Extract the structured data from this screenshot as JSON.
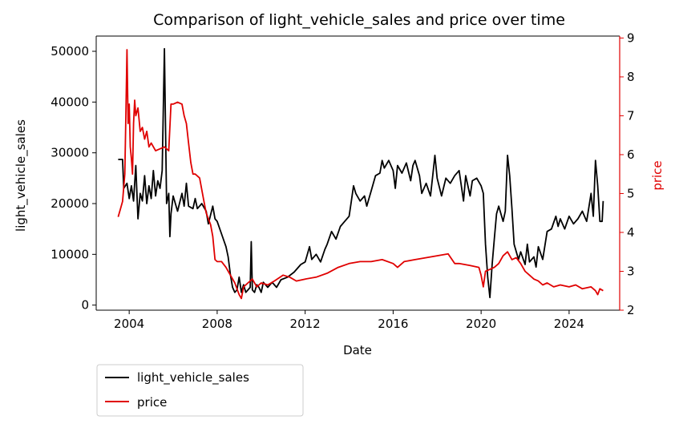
{
  "chart_data": {
    "type": "line",
    "title": "Comparison of light_vehicle_sales and price over time",
    "xlabel": "Date",
    "ylabel_left": "light_vehicle_sales",
    "ylabel_right": "price",
    "xlim": [
      2002.5,
      2026.3
    ],
    "ylim_left": [
      -1000,
      53000
    ],
    "ylim_right": [
      2.0,
      9.05
    ],
    "x_ticks": [
      {
        "value": 2004,
        "label": "2004"
      },
      {
        "value": 2008,
        "label": "2008"
      },
      {
        "value": 2012,
        "label": "2012"
      },
      {
        "value": 2016,
        "label": "2016"
      },
      {
        "value": 2020,
        "label": "2020"
      },
      {
        "value": 2024,
        "label": "2024"
      }
    ],
    "y_ticks_left": [
      {
        "value": 0,
        "label": "0"
      },
      {
        "value": 10000,
        "label": "10000"
      },
      {
        "value": 20000,
        "label": "20000"
      },
      {
        "value": 30000,
        "label": "30000"
      },
      {
        "value": 40000,
        "label": "40000"
      },
      {
        "value": 50000,
        "label": "50000"
      }
    ],
    "y_ticks_right": [
      {
        "value": 2,
        "label": "2"
      },
      {
        "value": 3,
        "label": "3"
      },
      {
        "value": 4,
        "label": "4"
      },
      {
        "value": 5,
        "label": "5"
      },
      {
        "value": 6,
        "label": "6"
      },
      {
        "value": 7,
        "label": "7"
      },
      {
        "value": 8,
        "label": "8"
      },
      {
        "value": 9,
        "label": "9"
      }
    ],
    "legend_position": "below-left",
    "grid": false,
    "series": [
      {
        "name": "light_vehicle_sales",
        "color": "#000000",
        "axis": "left",
        "points": [
          [
            2003.5,
            28700
          ],
          [
            2003.7,
            28700
          ],
          [
            2003.75,
            23000
          ],
          [
            2003.9,
            24000
          ],
          [
            2004.0,
            21000
          ],
          [
            2004.1,
            23500
          ],
          [
            2004.2,
            20500
          ],
          [
            2004.3,
            27500
          ],
          [
            2004.35,
            22000
          ],
          [
            2004.4,
            17000
          ],
          [
            2004.5,
            22000
          ],
          [
            2004.6,
            20500
          ],
          [
            2004.7,
            25500
          ],
          [
            2004.8,
            20000
          ],
          [
            2004.9,
            23500
          ],
          [
            2005.0,
            21000
          ],
          [
            2005.1,
            26500
          ],
          [
            2005.2,
            21500
          ],
          [
            2005.3,
            24500
          ],
          [
            2005.4,
            23000
          ],
          [
            2005.5,
            26500
          ],
          [
            2005.6,
            50500
          ],
          [
            2005.7,
            20000
          ],
          [
            2005.8,
            22000
          ],
          [
            2005.85,
            13500
          ],
          [
            2005.9,
            18000
          ],
          [
            2006.0,
            21500
          ],
          [
            2006.2,
            18500
          ],
          [
            2006.4,
            22000
          ],
          [
            2006.5,
            19500
          ],
          [
            2006.6,
            24000
          ],
          [
            2006.7,
            19500
          ],
          [
            2006.9,
            19000
          ],
          [
            2007.0,
            21000
          ],
          [
            2007.1,
            19000
          ],
          [
            2007.3,
            20000
          ],
          [
            2007.5,
            18500
          ],
          [
            2007.6,
            16000
          ],
          [
            2007.8,
            19500
          ],
          [
            2007.9,
            17000
          ],
          [
            2008.0,
            16500
          ],
          [
            2008.2,
            14000
          ],
          [
            2008.4,
            11500
          ],
          [
            2008.5,
            9500
          ],
          [
            2008.6,
            6000
          ],
          [
            2008.7,
            3500
          ],
          [
            2008.8,
            2500
          ],
          [
            2008.9,
            3000
          ],
          [
            2009.0,
            5500
          ],
          [
            2009.1,
            2500
          ],
          [
            2009.2,
            4000
          ],
          [
            2009.3,
            2500
          ],
          [
            2009.5,
            3500
          ],
          [
            2009.55,
            12500
          ],
          [
            2009.6,
            3000
          ],
          [
            2009.7,
            2500
          ],
          [
            2009.8,
            4000
          ],
          [
            2009.9,
            3500
          ],
          [
            2010.0,
            2500
          ],
          [
            2010.1,
            4500
          ],
          [
            2010.3,
            3500
          ],
          [
            2010.5,
            4500
          ],
          [
            2010.7,
            3500
          ],
          [
            2010.9,
            5000
          ],
          [
            2011.2,
            5500
          ],
          [
            2011.5,
            6500
          ],
          [
            2011.8,
            8000
          ],
          [
            2012.0,
            8500
          ],
          [
            2012.2,
            11500
          ],
          [
            2012.3,
            9000
          ],
          [
            2012.5,
            10000
          ],
          [
            2012.7,
            8500
          ],
          [
            2012.9,
            11000
          ],
          [
            2013.0,
            12000
          ],
          [
            2013.2,
            14500
          ],
          [
            2013.4,
            13000
          ],
          [
            2013.6,
            15500
          ],
          [
            2013.8,
            16500
          ],
          [
            2014.0,
            17500
          ],
          [
            2014.1,
            20500
          ],
          [
            2014.2,
            23500
          ],
          [
            2014.3,
            22000
          ],
          [
            2014.5,
            20500
          ],
          [
            2014.7,
            21500
          ],
          [
            2014.8,
            19500
          ],
          [
            2015.0,
            22500
          ],
          [
            2015.2,
            25500
          ],
          [
            2015.4,
            26000
          ],
          [
            2015.5,
            28500
          ],
          [
            2015.6,
            27000
          ],
          [
            2015.8,
            28500
          ],
          [
            2016.0,
            26500
          ],
          [
            2016.1,
            23000
          ],
          [
            2016.2,
            27500
          ],
          [
            2016.4,
            26000
          ],
          [
            2016.6,
            28000
          ],
          [
            2016.8,
            24500
          ],
          [
            2016.9,
            27500
          ],
          [
            2017.0,
            28500
          ],
          [
            2017.2,
            25500
          ],
          [
            2017.3,
            22000
          ],
          [
            2017.5,
            24000
          ],
          [
            2017.7,
            21500
          ],
          [
            2017.8,
            25500
          ],
          [
            2017.9,
            29500
          ],
          [
            2018.0,
            25000
          ],
          [
            2018.2,
            21500
          ],
          [
            2018.4,
            25000
          ],
          [
            2018.6,
            24000
          ],
          [
            2018.8,
            25500
          ],
          [
            2019.0,
            26500
          ],
          [
            2019.2,
            20500
          ],
          [
            2019.3,
            25500
          ],
          [
            2019.5,
            21500
          ],
          [
            2019.6,
            24500
          ],
          [
            2019.8,
            25000
          ],
          [
            2020.0,
            23500
          ],
          [
            2020.1,
            22000
          ],
          [
            2020.2,
            12000
          ],
          [
            2020.3,
            5500
          ],
          [
            2020.4,
            1500
          ],
          [
            2020.5,
            8000
          ],
          [
            2020.6,
            13000
          ],
          [
            2020.7,
            18000
          ],
          [
            2020.8,
            19500
          ],
          [
            2021.0,
            16500
          ],
          [
            2021.1,
            18500
          ],
          [
            2021.2,
            29500
          ],
          [
            2021.3,
            25500
          ],
          [
            2021.4,
            19000
          ],
          [
            2021.5,
            12000
          ],
          [
            2021.7,
            9000
          ],
          [
            2021.8,
            10500
          ],
          [
            2022.0,
            8000
          ],
          [
            2022.1,
            12000
          ],
          [
            2022.2,
            8500
          ],
          [
            2022.4,
            9500
          ],
          [
            2022.5,
            7500
          ],
          [
            2022.6,
            11500
          ],
          [
            2022.8,
            9000
          ],
          [
            2023.0,
            14500
          ],
          [
            2023.2,
            15000
          ],
          [
            2023.4,
            17500
          ],
          [
            2023.5,
            15500
          ],
          [
            2023.6,
            17000
          ],
          [
            2023.8,
            15000
          ],
          [
            2024.0,
            17500
          ],
          [
            2024.2,
            16000
          ],
          [
            2024.4,
            17000
          ],
          [
            2024.6,
            18500
          ],
          [
            2024.8,
            16500
          ],
          [
            2025.0,
            22000
          ],
          [
            2025.1,
            17500
          ],
          [
            2025.2,
            28500
          ],
          [
            2025.3,
            23500
          ],
          [
            2025.4,
            16500
          ],
          [
            2025.5,
            16500
          ],
          [
            2025.55,
            20500
          ]
        ]
      },
      {
        "name": "price",
        "color": "#e00000",
        "axis": "right",
        "points": [
          [
            2003.5,
            4.4
          ],
          [
            2003.6,
            4.6
          ],
          [
            2003.7,
            4.8
          ],
          [
            2003.8,
            5.5
          ],
          [
            2003.85,
            7.0
          ],
          [
            2003.9,
            8.7
          ],
          [
            2003.95,
            6.8
          ],
          [
            2004.0,
            7.3
          ],
          [
            2004.05,
            6.2
          ],
          [
            2004.1,
            5.9
          ],
          [
            2004.15,
            5.5
          ],
          [
            2004.2,
            6.8
          ],
          [
            2004.25,
            7.4
          ],
          [
            2004.3,
            7.0
          ],
          [
            2004.4,
            7.2
          ],
          [
            2004.5,
            6.6
          ],
          [
            2004.6,
            6.7
          ],
          [
            2004.7,
            6.4
          ],
          [
            2004.8,
            6.6
          ],
          [
            2004.9,
            6.2
          ],
          [
            2005.0,
            6.3
          ],
          [
            2005.2,
            6.1
          ],
          [
            2005.4,
            6.15
          ],
          [
            2005.6,
            6.2
          ],
          [
            2005.8,
            6.1
          ],
          [
            2005.9,
            7.3
          ],
          [
            2006.0,
            7.3
          ],
          [
            2006.2,
            7.35
          ],
          [
            2006.4,
            7.3
          ],
          [
            2006.5,
            7.0
          ],
          [
            2006.6,
            6.8
          ],
          [
            2006.7,
            6.3
          ],
          [
            2006.8,
            5.8
          ],
          [
            2006.9,
            5.5
          ],
          [
            2007.0,
            5.5
          ],
          [
            2007.2,
            5.4
          ],
          [
            2007.4,
            4.8
          ],
          [
            2007.5,
            4.5
          ],
          [
            2007.7,
            4.2
          ],
          [
            2007.8,
            3.9
          ],
          [
            2007.9,
            3.3
          ],
          [
            2008.0,
            3.25
          ],
          [
            2008.2,
            3.25
          ],
          [
            2008.4,
            3.1
          ],
          [
            2008.6,
            2.9
          ],
          [
            2008.8,
            2.7
          ],
          [
            2009.0,
            2.4
          ],
          [
            2009.1,
            2.3
          ],
          [
            2009.2,
            2.6
          ],
          [
            2009.4,
            2.7
          ],
          [
            2009.6,
            2.8
          ],
          [
            2009.8,
            2.6
          ],
          [
            2010.0,
            2.7
          ],
          [
            2010.3,
            2.65
          ],
          [
            2010.6,
            2.75
          ],
          [
            2011.0,
            2.9
          ],
          [
            2011.3,
            2.85
          ],
          [
            2011.6,
            2.75
          ],
          [
            2012.0,
            2.8
          ],
          [
            2012.5,
            2.85
          ],
          [
            2013.0,
            2.95
          ],
          [
            2013.5,
            3.1
          ],
          [
            2014.0,
            3.2
          ],
          [
            2014.5,
            3.25
          ],
          [
            2015.0,
            3.25
          ],
          [
            2015.5,
            3.3
          ],
          [
            2016.0,
            3.2
          ],
          [
            2016.2,
            3.1
          ],
          [
            2016.5,
            3.25
          ],
          [
            2017.0,
            3.3
          ],
          [
            2017.5,
            3.35
          ],
          [
            2018.0,
            3.4
          ],
          [
            2018.5,
            3.45
          ],
          [
            2018.8,
            3.2
          ],
          [
            2019.0,
            3.2
          ],
          [
            2019.5,
            3.15
          ],
          [
            2019.9,
            3.1
          ],
          [
            2020.0,
            2.9
          ],
          [
            2020.1,
            2.6
          ],
          [
            2020.2,
            3.0
          ],
          [
            2020.4,
            3.05
          ],
          [
            2020.6,
            3.1
          ],
          [
            2020.8,
            3.2
          ],
          [
            2021.0,
            3.4
          ],
          [
            2021.2,
            3.5
          ],
          [
            2021.4,
            3.3
          ],
          [
            2021.6,
            3.35
          ],
          [
            2021.8,
            3.2
          ],
          [
            2022.0,
            3.0
          ],
          [
            2022.2,
            2.9
          ],
          [
            2022.4,
            2.8
          ],
          [
            2022.6,
            2.75
          ],
          [
            2022.8,
            2.65
          ],
          [
            2023.0,
            2.7
          ],
          [
            2023.3,
            2.6
          ],
          [
            2023.6,
            2.65
          ],
          [
            2024.0,
            2.6
          ],
          [
            2024.3,
            2.65
          ],
          [
            2024.6,
            2.55
          ],
          [
            2025.0,
            2.6
          ],
          [
            2025.2,
            2.5
          ],
          [
            2025.3,
            2.4
          ],
          [
            2025.4,
            2.55
          ],
          [
            2025.55,
            2.5
          ]
        ]
      }
    ]
  }
}
